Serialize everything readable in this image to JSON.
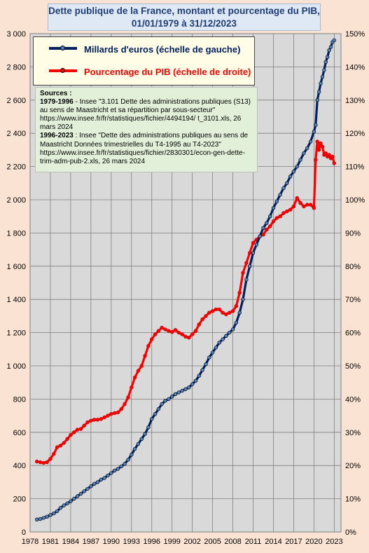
{
  "title": {
    "line1": "Dette publique de la France, montant et pourcentage du PIB,",
    "line2": "01/01/1979 à 31/12/2023"
  },
  "legend": {
    "series1": "Millards d'euros (échelle de gauche)",
    "series2": "Pourcentage du PIB (échelle de droite)"
  },
  "sources": {
    "heading": "Sources :",
    "s1_years": "1979-1996",
    "s1_text": " - Insee \"3.101 Dette des administrations publiques (S13) au sens de Maastricht et sa répartition par sous-secteur\" https://www.insee.fr/fr/statistiques/fichier/4494194/ t_3101.xls, 26 mars 2024",
    "s2_years": "1996-2023",
    "s2_text": " : Insee \"Dette des administrations publiques au sens de Maastricht Données trimestrielles du T4-1995 au T4-2023\" https://www.insee.fr/fr/statistiques/fichier/2830301/econ-gen-dette-trim-adm-pub-2.xls, 26 mars 2024"
  },
  "colors": {
    "series1": "#002060",
    "series1_marker": "#4f81bd",
    "series2": "#ff0000",
    "plot_bg": "#d9d9d9",
    "page_bg": "#fbe3d3"
  },
  "chart_data": {
    "type": "line",
    "left_axis": {
      "min": 0,
      "max": 3000,
      "ticks": [
        "0",
        "200",
        "400",
        "600",
        "800",
        "1 000",
        "1 200",
        "1 400",
        "1 600",
        "1 800",
        "2 000",
        "2 200",
        "2 400",
        "2 600",
        "2 800",
        "3 000"
      ]
    },
    "right_axis": {
      "min": 0,
      "max": 150,
      "ticks": [
        "0%",
        "10%",
        "20%",
        "30%",
        "40%",
        "50%",
        "60%",
        "70%",
        "80%",
        "90%",
        "100%",
        "110%",
        "120%",
        "130%",
        "140%",
        "150%"
      ]
    },
    "x_axis": {
      "min": 1978,
      "max": 2024,
      "ticks": [
        "1978",
        "1981",
        "1984",
        "1987",
        "1990",
        "1993",
        "1996",
        "1999",
        "2002",
        "2005",
        "2008",
        "2011",
        "2014",
        "2017",
        "2020",
        "2023"
      ]
    },
    "grid": true,
    "series": [
      {
        "name": "Millards d'euros (échelle de gauche)",
        "axis": "left",
        "points": [
          [
            1979.0,
            75
          ],
          [
            1979.5,
            78
          ],
          [
            1980.0,
            85
          ],
          [
            1980.5,
            92
          ],
          [
            1981.0,
            102
          ],
          [
            1981.5,
            112
          ],
          [
            1982.0,
            125
          ],
          [
            1982.5,
            145
          ],
          [
            1983.0,
            160
          ],
          [
            1983.5,
            172
          ],
          [
            1984.0,
            185
          ],
          [
            1984.5,
            200
          ],
          [
            1985.0,
            215
          ],
          [
            1985.5,
            230
          ],
          [
            1986.0,
            245
          ],
          [
            1986.5,
            260
          ],
          [
            1987.0,
            275
          ],
          [
            1987.5,
            290
          ],
          [
            1988.0,
            300
          ],
          [
            1988.5,
            315
          ],
          [
            1989.0,
            325
          ],
          [
            1989.5,
            340
          ],
          [
            1990.0,
            355
          ],
          [
            1990.5,
            370
          ],
          [
            1991.0,
            380
          ],
          [
            1991.5,
            395
          ],
          [
            1992.0,
            410
          ],
          [
            1992.5,
            435
          ],
          [
            1993.0,
            465
          ],
          [
            1993.5,
            500
          ],
          [
            1994.0,
            530
          ],
          [
            1994.5,
            560
          ],
          [
            1995.0,
            590
          ],
          [
            1995.5,
            630
          ],
          [
            1996.0,
            680
          ],
          [
            1996.5,
            710
          ],
          [
            1997.0,
            740
          ],
          [
            1997.5,
            770
          ],
          [
            1998.0,
            790
          ],
          [
            1998.5,
            800
          ],
          [
            1999.0,
            815
          ],
          [
            1999.5,
            830
          ],
          [
            2000.0,
            840
          ],
          [
            2000.5,
            850
          ],
          [
            2001.0,
            860
          ],
          [
            2001.5,
            870
          ],
          [
            2002.0,
            890
          ],
          [
            2002.5,
            910
          ],
          [
            2003.0,
            940
          ],
          [
            2003.5,
            975
          ],
          [
            2004.0,
            1010
          ],
          [
            2004.5,
            1050
          ],
          [
            2005.0,
            1080
          ],
          [
            2005.5,
            1110
          ],
          [
            2006.0,
            1140
          ],
          [
            2006.5,
            1160
          ],
          [
            2007.0,
            1180
          ],
          [
            2007.5,
            1200
          ],
          [
            2008.0,
            1220
          ],
          [
            2008.5,
            1260
          ],
          [
            2009.0,
            1320
          ],
          [
            2009.5,
            1400
          ],
          [
            2010.0,
            1520
          ],
          [
            2010.5,
            1600
          ],
          [
            2011.0,
            1680
          ],
          [
            2011.5,
            1730
          ],
          [
            2012.0,
            1780
          ],
          [
            2012.5,
            1830
          ],
          [
            2013.0,
            1860
          ],
          [
            2013.5,
            1900
          ],
          [
            2014.0,
            1950
          ],
          [
            2014.5,
            1990
          ],
          [
            2015.0,
            2030
          ],
          [
            2015.5,
            2070
          ],
          [
            2016.0,
            2100
          ],
          [
            2016.5,
            2140
          ],
          [
            2017.0,
            2170
          ],
          [
            2017.5,
            2200
          ],
          [
            2018.0,
            2240
          ],
          [
            2018.5,
            2280
          ],
          [
            2019.0,
            2310
          ],
          [
            2019.5,
            2350
          ],
          [
            2020.0,
            2410
          ],
          [
            2020.25,
            2450
          ],
          [
            2020.5,
            2600
          ],
          [
            2020.75,
            2650
          ],
          [
            2021.0,
            2700
          ],
          [
            2021.25,
            2740
          ],
          [
            2021.5,
            2780
          ],
          [
            2021.75,
            2830
          ],
          [
            2022.0,
            2860
          ],
          [
            2022.25,
            2900
          ],
          [
            2022.5,
            2920
          ],
          [
            2022.75,
            2950
          ],
          [
            2023.0,
            2960
          ]
        ]
      },
      {
        "name": "Pourcentage du PIB (échelle de droite)",
        "axis": "right",
        "points": [
          [
            1979.0,
            21.2
          ],
          [
            1979.5,
            21.0
          ],
          [
            1980.0,
            20.8
          ],
          [
            1980.5,
            21.0
          ],
          [
            1981.0,
            22.0
          ],
          [
            1981.5,
            23.5
          ],
          [
            1982.0,
            25.5
          ],
          [
            1982.5,
            26.0
          ],
          [
            1983.0,
            26.8
          ],
          [
            1983.5,
            28.0
          ],
          [
            1984.0,
            29.2
          ],
          [
            1984.5,
            30.0
          ],
          [
            1985.0,
            30.8
          ],
          [
            1985.5,
            31.0
          ],
          [
            1986.0,
            32.0
          ],
          [
            1986.5,
            33.0
          ],
          [
            1987.0,
            33.5
          ],
          [
            1987.5,
            33.8
          ],
          [
            1988.0,
            33.8
          ],
          [
            1988.5,
            34.0
          ],
          [
            1989.0,
            34.5
          ],
          [
            1989.5,
            35.0
          ],
          [
            1990.0,
            35.5
          ],
          [
            1990.5,
            35.8
          ],
          [
            1991.0,
            36.0
          ],
          [
            1991.5,
            37.0
          ],
          [
            1992.0,
            38.5
          ],
          [
            1992.5,
            40.5
          ],
          [
            1993.0,
            43.5
          ],
          [
            1993.5,
            46.5
          ],
          [
            1994.0,
            48.5
          ],
          [
            1994.5,
            50.0
          ],
          [
            1995.0,
            53.0
          ],
          [
            1995.5,
            56.0
          ],
          [
            1996.0,
            58.0
          ],
          [
            1996.5,
            59.5
          ],
          [
            1997.0,
            60.5
          ],
          [
            1997.5,
            61.5
          ],
          [
            1998.0,
            61.0
          ],
          [
            1998.5,
            60.5
          ],
          [
            1999.0,
            60.2
          ],
          [
            1999.5,
            60.8
          ],
          [
            2000.0,
            60.0
          ],
          [
            2000.5,
            59.5
          ],
          [
            2001.0,
            58.8
          ],
          [
            2001.5,
            58.5
          ],
          [
            2002.0,
            59.5
          ],
          [
            2002.5,
            60.5
          ],
          [
            2003.0,
            62.5
          ],
          [
            2003.5,
            64.0
          ],
          [
            2004.0,
            65.0
          ],
          [
            2004.5,
            66.0
          ],
          [
            2005.0,
            66.5
          ],
          [
            2005.5,
            67.0
          ],
          [
            2006.0,
            67.0
          ],
          [
            2006.5,
            66.0
          ],
          [
            2007.0,
            65.5
          ],
          [
            2007.5,
            66.0
          ],
          [
            2008.0,
            66.5
          ],
          [
            2008.5,
            68.0
          ],
          [
            2009.0,
            72.0
          ],
          [
            2009.5,
            78.0
          ],
          [
            2010.0,
            81.0
          ],
          [
            2010.5,
            84.0
          ],
          [
            2011.0,
            87.0
          ],
          [
            2011.5,
            88.0
          ],
          [
            2012.0,
            89.0
          ],
          [
            2012.5,
            89.5
          ],
          [
            2013.0,
            91.0
          ],
          [
            2013.5,
            92.0
          ],
          [
            2014.0,
            93.5
          ],
          [
            2014.5,
            94.5
          ],
          [
            2015.0,
            95.0
          ],
          [
            2015.5,
            96.0
          ],
          [
            2016.0,
            96.5
          ],
          [
            2016.5,
            97.0
          ],
          [
            2017.0,
            98.0
          ],
          [
            2017.5,
            100.5
          ],
          [
            2018.0,
            99.0
          ],
          [
            2018.5,
            98.0
          ],
          [
            2019.0,
            98.5
          ],
          [
            2019.5,
            98.5
          ],
          [
            2020.0,
            97.5
          ],
          [
            2020.25,
            112.0
          ],
          [
            2020.5,
            117.5
          ],
          [
            2020.75,
            115.0
          ],
          [
            2021.0,
            117.0
          ],
          [
            2021.25,
            116.0
          ],
          [
            2021.5,
            113.5
          ],
          [
            2021.75,
            114.0
          ],
          [
            2022.0,
            113.0
          ],
          [
            2022.25,
            113.5
          ],
          [
            2022.5,
            112.5
          ],
          [
            2022.75,
            113.0
          ],
          [
            2023.0,
            111.0
          ]
        ]
      }
    ]
  }
}
